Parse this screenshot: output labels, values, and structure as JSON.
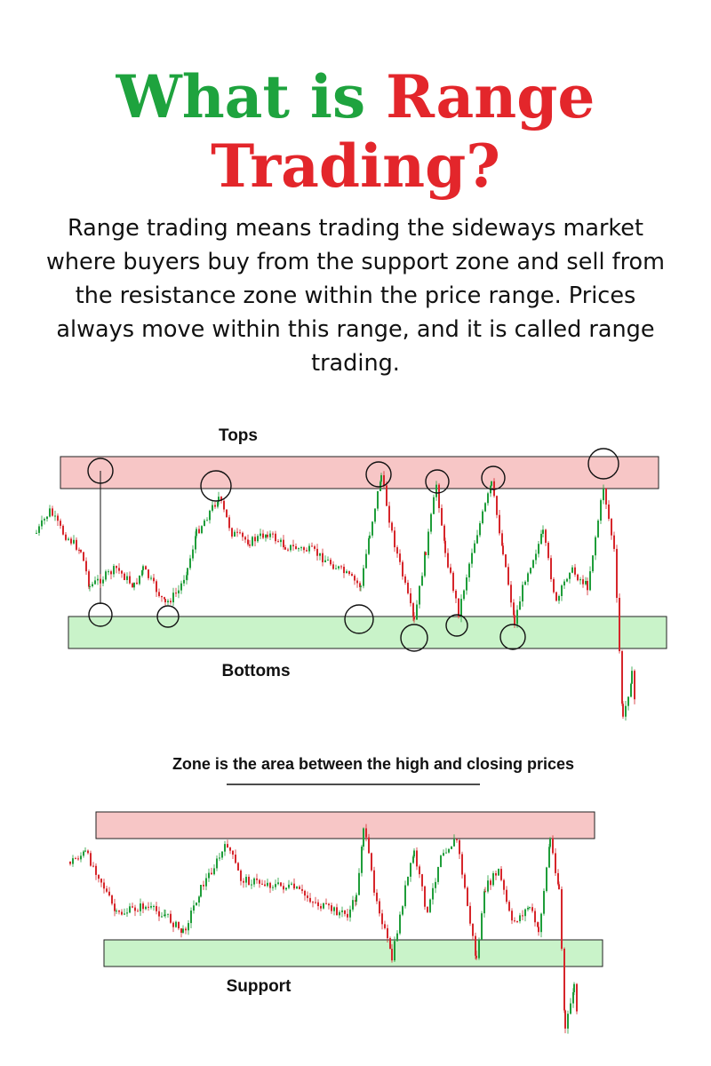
{
  "header": {
    "title_green": "What is",
    "title_red": "Range",
    "title_line2": "Trading?"
  },
  "intro": "Range trading means trading the sideways market where buyers buy from the support zone and sell from the resistance zone within the price range. Prices always move within this range, and it is called range trading.",
  "diagram1": {
    "top_label": "Tops",
    "bottom_label": "Bottoms"
  },
  "diagram2": {
    "caption": "Zone is the area between the high and closing prices",
    "bottom_label": "Support"
  }
}
